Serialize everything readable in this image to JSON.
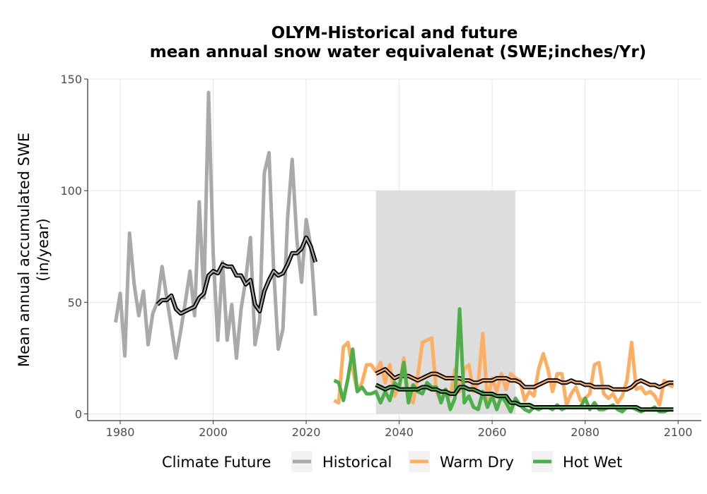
{
  "chart_data": {
    "type": "line",
    "title_lines": [
      "OLYM-Historical and future",
      "mean annual snow water equivalenat (SWE;inches/Yr)"
    ],
    "xlabel": "",
    "ylabel_lines": [
      "Mean annual accumulated SWE",
      "(in/year)"
    ],
    "xlim": [
      1973,
      2105
    ],
    "ylim": [
      -3,
      150
    ],
    "x_ticks": [
      1980,
      2000,
      2020,
      2040,
      2060,
      2080,
      2100
    ],
    "y_ticks": [
      0,
      50,
      100,
      150
    ],
    "grid": true,
    "shaded_period": {
      "x_start": 2035,
      "x_end": 2065,
      "y_start": 0,
      "y_end": 100
    },
    "legend": {
      "title": "Climate Future",
      "position": "bottom",
      "entries": [
        "Historical",
        "Warm Dry",
        "Hot Wet"
      ]
    },
    "colors": {
      "Historical": "#a9a9a9",
      "Warm Dry": "#fdae61",
      "Hot Wet": "#4daf4a",
      "smooth": "#000000",
      "shade": "#dddddd",
      "grid": "#e5e5e5"
    },
    "series": [
      {
        "name": "Historical",
        "x": [
          1979,
          1980,
          1981,
          1982,
          1983,
          1984,
          1985,
          1986,
          1987,
          1988,
          1989,
          1990,
          1991,
          1992,
          1993,
          1994,
          1995,
          1996,
          1997,
          1998,
          1999,
          2000,
          2001,
          2002,
          2003,
          2004,
          2005,
          2006,
          2007,
          2008,
          2009,
          2010,
          2011,
          2012,
          2013,
          2014,
          2015,
          2016,
          2017,
          2018,
          2019,
          2020,
          2021,
          2022
        ],
        "values": [
          41,
          54,
          26,
          81,
          58,
          44,
          55,
          31,
          45,
          50,
          66,
          52,
          39,
          25,
          37,
          50,
          64,
          44,
          95,
          52,
          144,
          72,
          33,
          68,
          33,
          49,
          25,
          47,
          60,
          79,
          31,
          42,
          108,
          117,
          65,
          29,
          38,
          88,
          114,
          78,
          59,
          87,
          75,
          44
        ]
      },
      {
        "name": "Historical (smoothed)",
        "x": [
          1988,
          1989,
          1990,
          1991,
          1992,
          1993,
          1994,
          1995,
          1996,
          1997,
          1998,
          1999,
          2000,
          2001,
          2002,
          2003,
          2004,
          2005,
          2006,
          2007,
          2008,
          2009,
          2010,
          2011,
          2012,
          2013,
          2014,
          2015,
          2016,
          2017,
          2018,
          2019,
          2020,
          2021,
          2022
        ],
        "values": [
          49,
          51,
          51,
          53,
          47,
          45,
          46,
          47,
          48,
          52,
          54,
          62,
          64,
          63,
          67,
          66,
          66,
          62,
          62,
          58,
          60,
          49,
          46,
          55,
          60,
          64,
          62,
          63,
          67,
          72,
          72,
          74,
          79,
          75,
          68
        ]
      },
      {
        "name": "Warm Dry",
        "x": [
          2026,
          2027,
          2028,
          2029,
          2030,
          2031,
          2032,
          2033,
          2034,
          2035,
          2036,
          2037,
          2038,
          2039,
          2040,
          2041,
          2042,
          2043,
          2044,
          2045,
          2046,
          2047,
          2048,
          2049,
          2050,
          2051,
          2052,
          2053,
          2054,
          2055,
          2056,
          2057,
          2058,
          2059,
          2060,
          2061,
          2062,
          2063,
          2064,
          2065,
          2066,
          2067,
          2068,
          2069,
          2070,
          2071,
          2072,
          2073,
          2074,
          2075,
          2076,
          2077,
          2078,
          2079,
          2080,
          2081,
          2082,
          2083,
          2084,
          2085,
          2086,
          2087,
          2088,
          2089,
          2090,
          2091,
          2092,
          2093,
          2094,
          2095,
          2096,
          2097,
          2098,
          2099
        ],
        "values": [
          6,
          5,
          30,
          32,
          20,
          10,
          14,
          22,
          22,
          19,
          23,
          14,
          22,
          8,
          12,
          25,
          7,
          5,
          17,
          32,
          33,
          34,
          10,
          6,
          11,
          8,
          20,
          10,
          20,
          22,
          10,
          14,
          36,
          6,
          16,
          10,
          18,
          11,
          18,
          16,
          15,
          6,
          10,
          8,
          20,
          27,
          20,
          10,
          18,
          18,
          4,
          9,
          12,
          6,
          7,
          9,
          22,
          23,
          9,
          7,
          9,
          5,
          8,
          15,
          32,
          11,
          12,
          9,
          10,
          8,
          4,
          15,
          13,
          12
        ]
      },
      {
        "name": "Warm Dry (smoothed)",
        "x": [
          2035,
          2036,
          2037,
          2038,
          2039,
          2040,
          2041,
          2042,
          2043,
          2044,
          2045,
          2046,
          2047,
          2048,
          2049,
          2050,
          2051,
          2052,
          2053,
          2054,
          2055,
          2056,
          2057,
          2058,
          2059,
          2060,
          2061,
          2062,
          2063,
          2064,
          2065,
          2066,
          2067,
          2068,
          2069,
          2070,
          2071,
          2072,
          2073,
          2074,
          2075,
          2076,
          2077,
          2078,
          2079,
          2080,
          2081,
          2082,
          2083,
          2084,
          2085,
          2086,
          2087,
          2088,
          2089,
          2090,
          2091,
          2092,
          2093,
          2094,
          2095,
          2096,
          2097,
          2098,
          2099
        ],
        "values": [
          18,
          19,
          20,
          18,
          16,
          17,
          17,
          17,
          16,
          15,
          16,
          17,
          18,
          18,
          17,
          16,
          16,
          16,
          16,
          15,
          15,
          14,
          14,
          15,
          15,
          15,
          16,
          16,
          16,
          15,
          15,
          14,
          12,
          12,
          12,
          13,
          14,
          15,
          15,
          15,
          14,
          14,
          15,
          14,
          14,
          13,
          13,
          12,
          12,
          12,
          12,
          11,
          11,
          11,
          11,
          12,
          14,
          15,
          14,
          13,
          13,
          12,
          13,
          14,
          14
        ]
      },
      {
        "name": "Hot Wet",
        "x": [
          2026,
          2027,
          2028,
          2029,
          2030,
          2031,
          2032,
          2033,
          2034,
          2035,
          2036,
          2037,
          2038,
          2039,
          2040,
          2041,
          2042,
          2043,
          2044,
          2045,
          2046,
          2047,
          2048,
          2049,
          2050,
          2051,
          2052,
          2053,
          2054,
          2055,
          2056,
          2057,
          2058,
          2059,
          2060,
          2061,
          2062,
          2063,
          2064,
          2065,
          2066,
          2067,
          2068,
          2069,
          2070,
          2071,
          2072,
          2073,
          2074,
          2075,
          2076,
          2077,
          2078,
          2079,
          2080,
          2081,
          2082,
          2083,
          2084,
          2085,
          2086,
          2087,
          2088,
          2089,
          2090,
          2091,
          2092,
          2093,
          2094,
          2095,
          2096,
          2097,
          2098,
          2099
        ],
        "values": [
          15,
          14,
          6,
          16,
          29,
          10,
          12,
          9,
          9,
          10,
          5,
          10,
          6,
          14,
          12,
          23,
          5,
          13,
          10,
          9,
          14,
          12,
          12,
          5,
          11,
          2,
          7,
          47,
          5,
          8,
          3,
          2,
          10,
          3,
          8,
          2,
          8,
          5,
          1,
          7,
          4,
          2,
          1,
          3,
          2,
          3,
          3,
          2,
          4,
          2,
          3,
          3,
          3,
          3,
          7,
          2,
          5,
          2,
          2,
          3,
          4,
          2,
          1,
          3,
          3,
          2,
          1,
          2,
          2,
          3,
          1,
          1,
          2,
          2
        ]
      },
      {
        "name": "Hot Wet (smoothed)",
        "x": [
          2035,
          2036,
          2037,
          2038,
          2039,
          2040,
          2041,
          2042,
          2043,
          2044,
          2045,
          2046,
          2047,
          2048,
          2049,
          2050,
          2051,
          2052,
          2053,
          2054,
          2055,
          2056,
          2057,
          2058,
          2059,
          2060,
          2061,
          2062,
          2063,
          2064,
          2065,
          2066,
          2067,
          2068,
          2069,
          2070,
          2071,
          2072,
          2073,
          2074,
          2075,
          2076,
          2077,
          2078,
          2079,
          2080,
          2081,
          2082,
          2083,
          2084,
          2085,
          2086,
          2087,
          2088,
          2089,
          2090,
          2091,
          2092,
          2093,
          2094,
          2095,
          2096,
          2097,
          2098,
          2099
        ],
        "values": [
          13,
          12,
          11,
          12,
          12,
          11,
          11,
          11,
          11,
          11,
          12,
          12,
          11,
          11,
          10,
          10,
          9,
          9,
          12,
          12,
          11,
          11,
          10,
          9,
          9,
          9,
          8,
          8,
          8,
          5,
          5,
          4,
          4,
          4,
          3,
          3,
          3,
          3,
          3,
          3,
          3,
          3,
          3,
          3,
          3,
          3,
          3,
          3,
          3,
          3,
          3,
          3,
          3,
          3,
          3,
          3,
          3,
          2,
          2,
          2,
          2,
          2,
          2,
          2,
          2
        ]
      }
    ]
  }
}
